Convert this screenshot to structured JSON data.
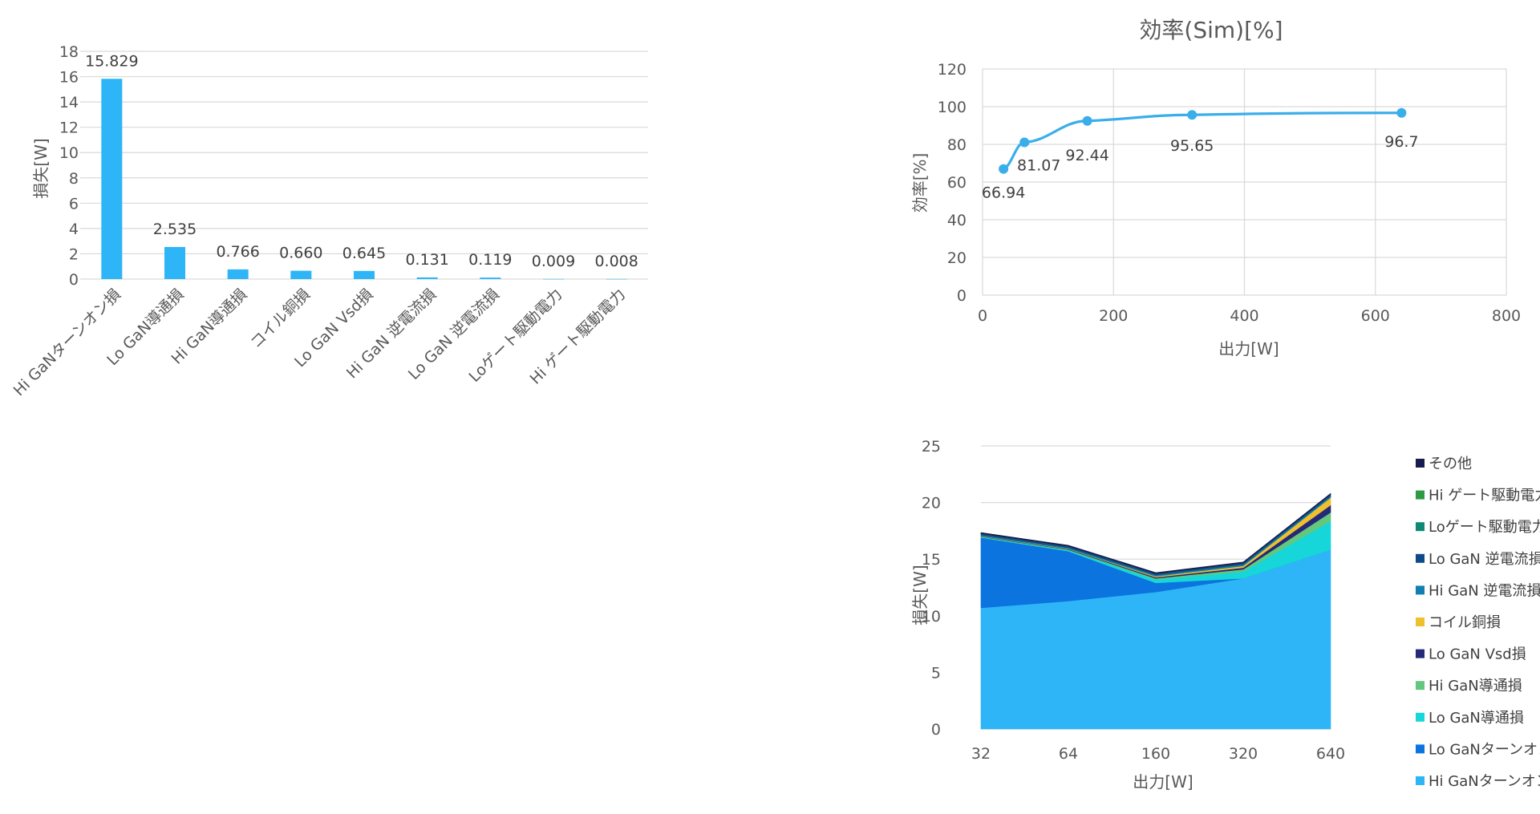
{
  "chart_data": [
    {
      "type": "bar",
      "ylabel": "損失[W]",
      "ylim": [
        0,
        18
      ],
      "yticks": [
        0,
        2,
        4,
        6,
        8,
        10,
        12,
        14,
        16,
        18
      ],
      "grid": true,
      "categories": [
        "Hi GaNターンオン損",
        "Lo GaN導通損",
        "Hi GaN導通損",
        "コイル銅損",
        "Lo GaN Vsd損",
        "Hi GaN 逆電流損",
        "Lo GaN 逆電流損",
        "Loゲート駆動電力",
        "Hi ゲート駆動電力"
      ],
      "values": [
        15.829,
        2.535,
        0.766,
        0.66,
        0.645,
        0.131,
        0.119,
        0.009,
        0.008
      ],
      "data_labels": [
        "15.829",
        "2.535",
        "0.766",
        "0.660",
        "0.645",
        "0.131",
        "0.119",
        "0.009",
        "0.008"
      ],
      "color": "#2eb5f7"
    },
    {
      "type": "scatter",
      "title": "効率(Sim)[%]",
      "xlabel": "出力[W]",
      "ylabel": "効率[%]",
      "xlim": [
        0,
        800
      ],
      "ylim": [
        0,
        120
      ],
      "xticks": [
        0,
        200,
        400,
        600,
        800
      ],
      "yticks": [
        0,
        20,
        40,
        60,
        80,
        100,
        120
      ],
      "grid": true,
      "x": [
        32,
        64,
        160,
        320,
        640
      ],
      "y": [
        66.94,
        81.07,
        92.44,
        95.65,
        96.7
      ],
      "data_labels": [
        "66.94",
        "81.07",
        "92.44",
        "95.65",
        "96.7"
      ],
      "color": "#3aaeea"
    },
    {
      "type": "area",
      "stacked": true,
      "xlabel": "出力[W]",
      "ylabel": "損失[W]",
      "ylim": [
        0,
        25
      ],
      "yticks": [
        0,
        5,
        10,
        15,
        20,
        25
      ],
      "grid": true,
      "legend_position": "right",
      "categories": [
        "32",
        "64",
        "160",
        "320",
        "640"
      ],
      "series": [
        {
          "name": "Hi GaNターンオン損",
          "color": "#2eb5f7",
          "values": [
            10.7,
            11.3,
            12.1,
            13.3,
            15.829
          ]
        },
        {
          "name": "Lo GaNターンオン損",
          "color": "#0b74de",
          "values": [
            6.2,
            4.4,
            0.8,
            0.0,
            0.0
          ]
        },
        {
          "name": "Lo GaN導通損",
          "color": "#17d6d9",
          "values": [
            0.05,
            0.08,
            0.3,
            0.6,
            2.535
          ]
        },
        {
          "name": "Hi GaN導通損",
          "color": "#63c77d",
          "values": [
            0.03,
            0.05,
            0.1,
            0.2,
            0.766
          ]
        },
        {
          "name": "Lo GaN Vsd損",
          "color": "#262878",
          "values": [
            0.03,
            0.05,
            0.1,
            0.15,
            0.645
          ]
        },
        {
          "name": "コイル銅損",
          "color": "#efc02d",
          "values": [
            0.02,
            0.03,
            0.08,
            0.15,
            0.66
          ]
        },
        {
          "name": "Hi GaN 逆電流損",
          "color": "#137fb1",
          "values": [
            0.1,
            0.1,
            0.11,
            0.12,
            0.131
          ]
        },
        {
          "name": "Lo GaN 逆電流損",
          "color": "#0f4a88",
          "values": [
            0.1,
            0.1,
            0.1,
            0.11,
            0.119
          ]
        },
        {
          "name": "Loゲート駆動電力",
          "color": "#0f8a72",
          "values": [
            0.009,
            0.009,
            0.009,
            0.009,
            0.009
          ]
        },
        {
          "name": "Hi ゲート駆動電力",
          "color": "#2f9a44",
          "values": [
            0.008,
            0.008,
            0.008,
            0.008,
            0.008
          ]
        },
        {
          "name": "その他",
          "color": "#171b4f",
          "values": [
            0.1,
            0.1,
            0.1,
            0.1,
            0.1
          ]
        }
      ]
    }
  ]
}
